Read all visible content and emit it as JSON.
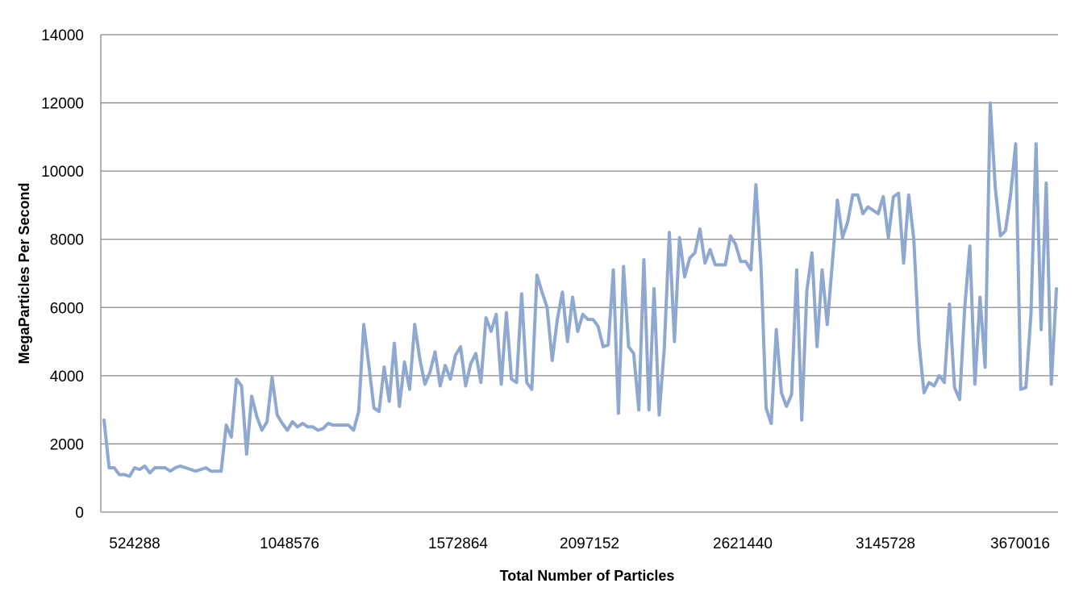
{
  "chart_data": {
    "type": "line",
    "title": "",
    "xlabel": "Total Number of Particles",
    "ylabel": "MegaParticles Per Second",
    "ylim": [
      0,
      14000
    ],
    "yticks": [
      0,
      2000,
      4000,
      6000,
      8000,
      10000,
      12000,
      14000
    ],
    "xtick_labels": [
      "524288",
      "1048576",
      "1572864",
      "2097152",
      "2621440",
      "3145728",
      "3670016"
    ],
    "grid": "horizontal",
    "legend": "none",
    "line_color": "#8fa8cf",
    "series": [
      {
        "values": [
          2700,
          1300,
          1300,
          1100,
          1100,
          1050,
          1300,
          1250,
          1350,
          1150,
          1300,
          1300,
          1300,
          1200,
          1300,
          1350,
          1300,
          1250,
          1200,
          1250,
          1300,
          1200,
          1200,
          1200,
          2550,
          2200,
          3900,
          3700,
          1700,
          3400,
          2800,
          2400,
          2650,
          3950,
          2850,
          2600,
          2400,
          2650,
          2500,
          2600,
          2500,
          2500,
          2400,
          2450,
          2600,
          2550,
          2550,
          2550,
          2550,
          2400,
          2950,
          5500,
          4300,
          3050,
          2950,
          4250,
          3250,
          4950,
          3100,
          4400,
          3600,
          5500,
          4500,
          3750,
          4100,
          4700,
          3700,
          4300,
          3900,
          4600,
          4850,
          3700,
          4350,
          4650,
          3800,
          5700,
          5300,
          5800,
          3750,
          5850,
          3900,
          3800,
          6400,
          3800,
          3600,
          6950,
          6450,
          6000,
          4450,
          5650,
          6450,
          5000,
          6300,
          5300,
          5800,
          5650,
          5650,
          5450,
          4850,
          4900,
          7100,
          2900,
          7200,
          4850,
          4650,
          3000,
          7400,
          3000,
          6550,
          2850,
          4800,
          8200,
          5000,
          8050,
          6900,
          7450,
          7600,
          8300,
          7300,
          7700,
          7250,
          7250,
          7250,
          8100,
          7850,
          7350,
          7350,
          7100,
          9600,
          7200,
          3050,
          2600,
          5350,
          3500,
          3100,
          3450,
          7100,
          2700,
          6500,
          7600,
          4850,
          7100,
          5500,
          7300,
          9150,
          8050,
          8500,
          9300,
          9300,
          8750,
          8950,
          8850,
          8750,
          9250,
          8050,
          9250,
          9350,
          7300,
          9300,
          8000,
          5000,
          3500,
          3800,
          3700,
          4000,
          3800,
          6100,
          3650,
          3300,
          6000,
          7800,
          3750,
          6300,
          4250,
          12000,
          9500,
          8100,
          8250,
          9300,
          10800,
          3600,
          3650,
          5800,
          10800,
          5350,
          9650,
          3750,
          6550
        ]
      }
    ]
  }
}
